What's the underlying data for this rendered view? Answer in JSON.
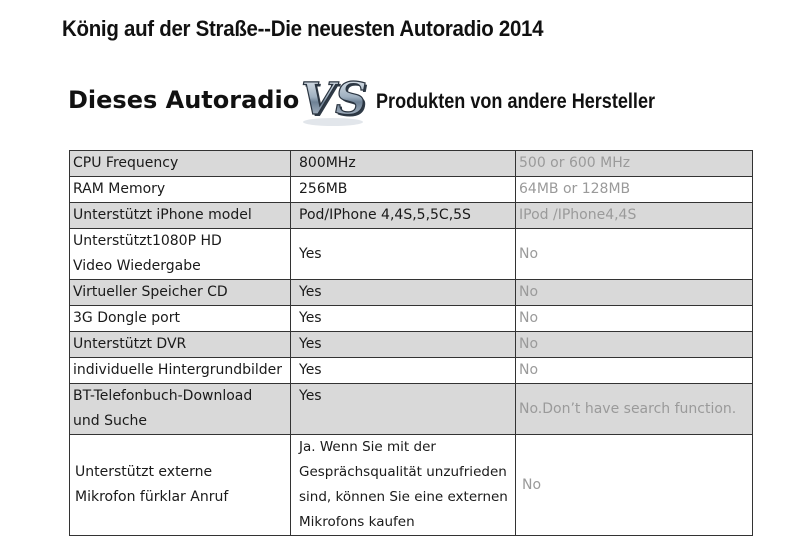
{
  "header": {
    "title": "König auf der Straße--Die neuesten Autoradio  2014",
    "left_label": "Dieses Autoradio",
    "vs_logo": "VS",
    "right_label": "Produkten von andere Hersteller"
  },
  "table": {
    "rows": [
      {
        "feature": "CPU Frequency",
        "ours": "800MHz",
        "others": "500 or 600 MHz"
      },
      {
        "feature": "RAM Memory",
        "ours": "256MB",
        "others": "64MB or 128MB"
      },
      {
        "feature": "Unterstützt iPhone model",
        "ours": "Pod/IPhone 4,4S,5,5C,5S",
        "others": "IPod /IPhone4,4S"
      },
      {
        "feature_line1": "Unterstützt1080P HD",
        "feature_line2": "Video Wiedergabe",
        "ours": "Yes",
        "others": "No"
      },
      {
        "feature": "Virtueller Speicher CD",
        "ours": "Yes",
        "others": "No"
      },
      {
        "feature": "3G Dongle port",
        "ours": "Yes",
        "others": "No"
      },
      {
        "feature": "Unterstützt DVR",
        "ours": "Yes",
        "others": "No"
      },
      {
        "feature": "individuelle Hintergrundbilder",
        "ours": "Yes",
        "others": "No"
      },
      {
        "feature_line1": "BT-Telefonbuch-Download",
        "feature_line2": "und Suche",
        "ours": "Yes",
        "others": "No.Don’t have search function."
      },
      {
        "feature_line1": "Unterstützt  externe",
        "feature_line2": "Mikrofon fürklar Anruf",
        "ours_line1": "Ja. Wenn Sie mit der",
        "ours_line2": "Gesprächsqualität unzufrieden",
        "ours_line3": "sind, können Sie eine externen",
        "ours_line4": "Mikrofons kaufen",
        "others": "No"
      }
    ]
  }
}
